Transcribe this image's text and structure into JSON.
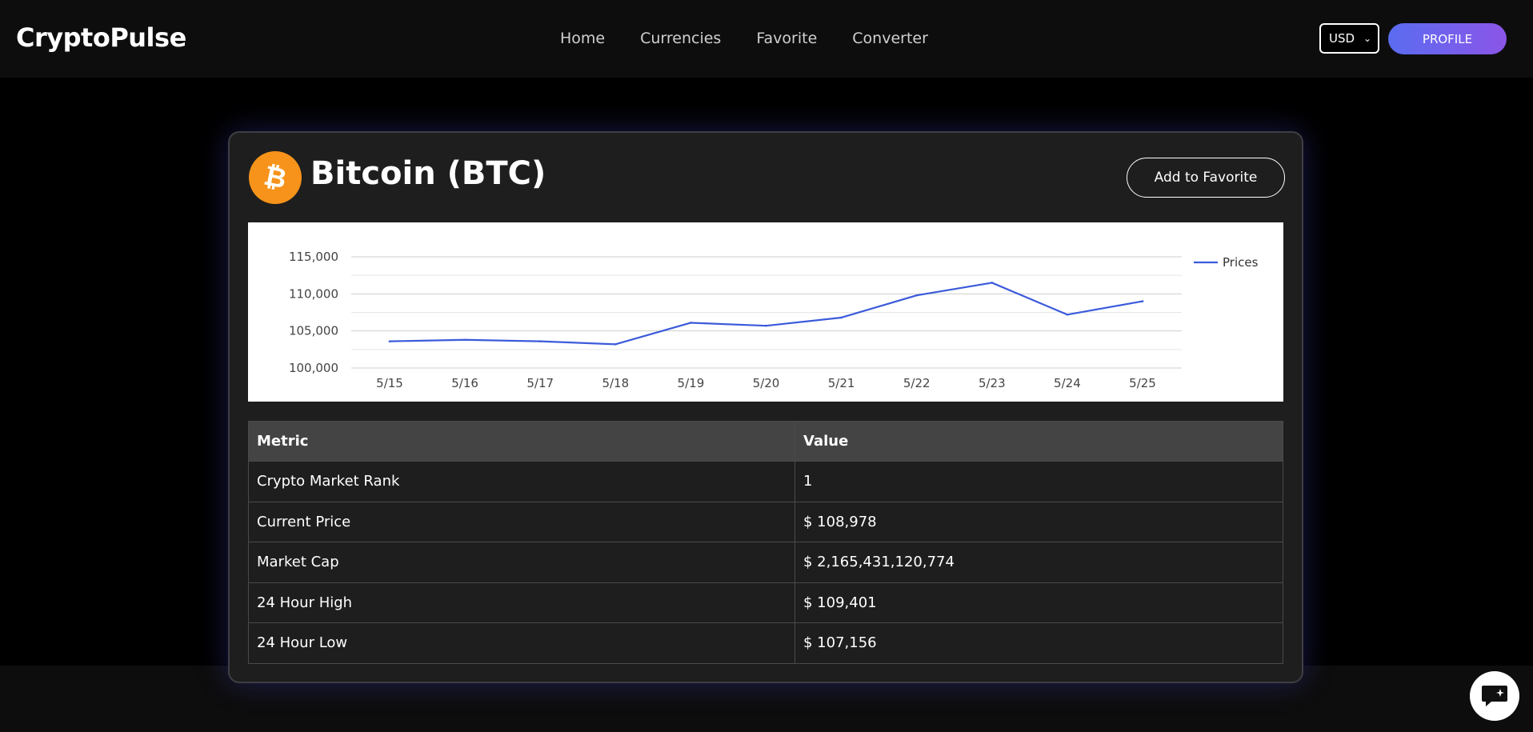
{
  "brand": "CryptoPulse",
  "nav": {
    "items": [
      "Home",
      "Currencies",
      "Favorite",
      "Converter"
    ]
  },
  "currency": {
    "selected": "USD"
  },
  "profile_label": "PROFILE",
  "coin": {
    "title": "Bitcoin (BTC)",
    "icon": "bitcoin-icon",
    "brand_color": "#f7931a"
  },
  "favorite_label": "Add to Favorite",
  "chart_data": {
    "type": "line",
    "title": "",
    "xlabel": "",
    "ylabel": "",
    "categories": [
      "5/15",
      "5/16",
      "5/17",
      "5/18",
      "5/19",
      "5/20",
      "5/21",
      "5/22",
      "5/23",
      "5/24",
      "5/25"
    ],
    "series": [
      {
        "name": "Prices",
        "color": "#3b5bdb",
        "values": [
          103600,
          103800,
          103600,
          103200,
          106100,
          105700,
          106800,
          109800,
          111500,
          107200,
          109000
        ]
      }
    ],
    "ylim": [
      100000,
      115000
    ],
    "yticks": [
      100000,
      105000,
      110000,
      115000
    ],
    "ytick_labels": [
      "100,000",
      "105,000",
      "110,000",
      "115,000"
    ],
    "grid": true,
    "legend": "top-right"
  },
  "table": {
    "headers": [
      "Metric",
      "Value"
    ],
    "rows": [
      [
        "Crypto Market Rank",
        "1"
      ],
      [
        "Current Price",
        "$ 108,978"
      ],
      [
        "Market Cap",
        "$ 2,165,431,120,774"
      ],
      [
        "24 Hour High",
        "$ 109,401"
      ],
      [
        "24 Hour Low",
        "$ 107,156"
      ]
    ]
  },
  "chat_icon": "chat-bubble-icon"
}
